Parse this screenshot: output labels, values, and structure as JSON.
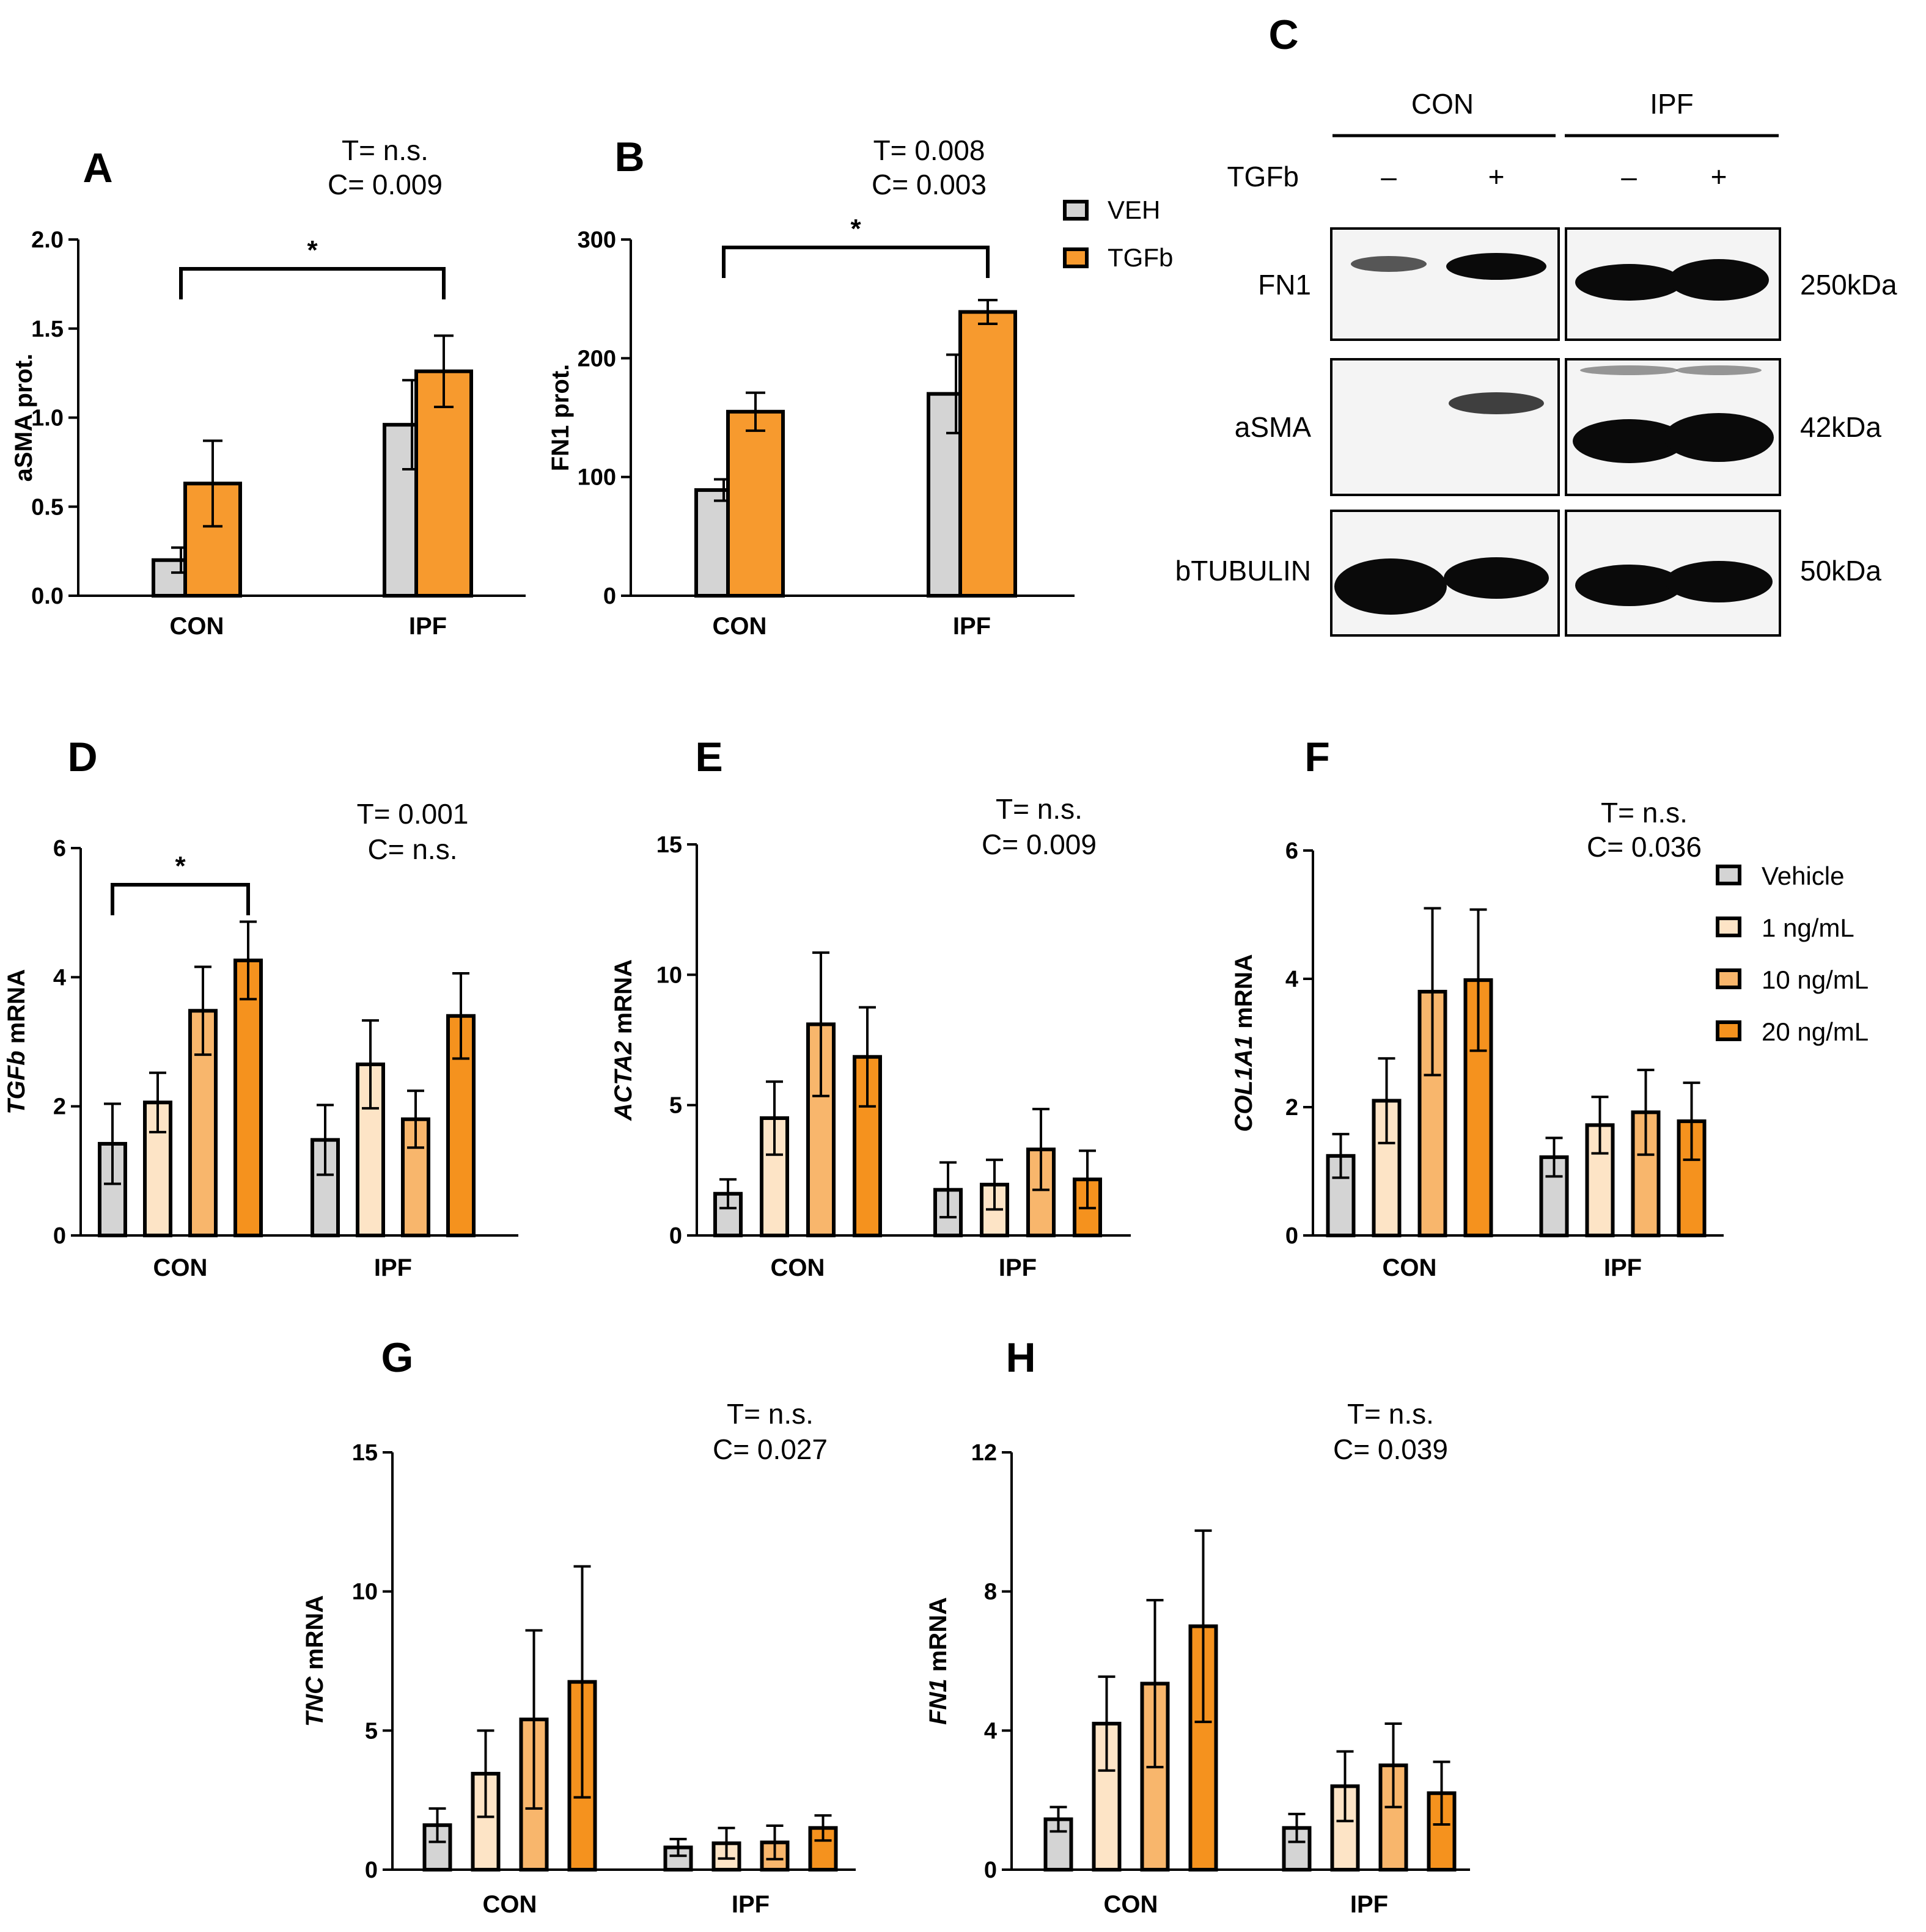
{
  "colors": {
    "VEH": "#d4d4d4",
    "TGFb": "#f79a2e",
    "Vehicle": "#d4d4d4",
    "1 ng/mL": "#fde4c6",
    "10 ng/mL": "#f8b66c",
    "20 ng/mL": "#f5921e",
    "band": "#0a0a0a"
  },
  "legend_protein": [
    "VEH",
    "TGFb"
  ],
  "legend_mrna": [
    "Vehicle",
    "1 ng/mL",
    "10 ng/mL",
    "20 ng/mL"
  ],
  "chart_data": [
    {
      "id": "A",
      "panel_label": "A",
      "type": "bar",
      "ylabel": "aSMA prot.",
      "ylabel_italic": "",
      "ylabel_rest": "aSMA prot.",
      "ylim": [
        0,
        2.0
      ],
      "yticks": [
        "0.0",
        "0.5",
        "1.0",
        "1.5",
        "2.0"
      ],
      "ytick_values": [
        0,
        0.5,
        1.0,
        1.5,
        2.0
      ],
      "categories": [
        "CON",
        "IPF"
      ],
      "stat_lines": [
        "T= n.s.",
        "C= 0.009"
      ],
      "significance": {
        "label": "*",
        "from": [
          0,
          0
        ],
        "to": [
          1,
          1
        ]
      },
      "series": [
        {
          "name": "VEH",
          "values": [
            0.2,
            0.96
          ],
          "errors": [
            0.07,
            0.25
          ]
        },
        {
          "name": "TGFb",
          "values": [
            0.63,
            1.26
          ],
          "errors": [
            0.24,
            0.2
          ]
        }
      ]
    },
    {
      "id": "B",
      "panel_label": "B",
      "type": "bar",
      "ylabel": "FN1 prot.",
      "ylabel_italic": "",
      "ylabel_rest": "FN1 prot.",
      "ylim": [
        0,
        300
      ],
      "yticks": [
        "0",
        "100",
        "200",
        "300"
      ],
      "ytick_values": [
        0,
        100,
        200,
        300
      ],
      "categories": [
        "CON",
        "IPF"
      ],
      "stat_lines": [
        "T= 0.008",
        "C= 0.003"
      ],
      "significance": {
        "label": "*",
        "from": [
          0,
          0
        ],
        "to": [
          1,
          1
        ]
      },
      "series": [
        {
          "name": "VEH",
          "values": [
            89,
            170
          ],
          "errors": [
            9,
            33
          ]
        },
        {
          "name": "TGFb",
          "values": [
            155,
            239
          ],
          "errors": [
            16,
            10
          ]
        }
      ]
    },
    {
      "id": "D",
      "panel_label": "D",
      "type": "bar",
      "ylabel": "TGFb mRNA",
      "ylabel_italic": "TGFb",
      "ylabel_rest": " mRNA",
      "ylim": [
        0,
        6
      ],
      "yticks": [
        "0",
        "2",
        "4",
        "6"
      ],
      "ytick_values": [
        0,
        2,
        4,
        6
      ],
      "categories": [
        "CON",
        "IPF"
      ],
      "stat_lines": [
        "T= 0.001",
        "C= n.s."
      ],
      "significance": {
        "label": "*",
        "from": [
          0,
          0
        ],
        "to": [
          0,
          3
        ]
      },
      "series": [
        {
          "name": "Vehicle",
          "values": [
            1.42,
            1.48
          ],
          "errors": [
            0.62,
            0.54
          ]
        },
        {
          "name": "1 ng/mL",
          "values": [
            2.06,
            2.65
          ],
          "errors": [
            0.46,
            0.68
          ]
        },
        {
          "name": "10 ng/mL",
          "values": [
            3.48,
            1.8
          ],
          "errors": [
            0.68,
            0.44
          ]
        },
        {
          "name": "20 ng/mL",
          "values": [
            4.26,
            3.4
          ],
          "errors": [
            0.6,
            0.66
          ]
        }
      ]
    },
    {
      "id": "E",
      "panel_label": "E",
      "type": "bar",
      "ylabel": "ACTA2 mRNA",
      "ylabel_italic": "ACTA2",
      "ylabel_rest": " mRNA",
      "ylim": [
        0,
        15
      ],
      "yticks": [
        "0",
        "5",
        "10",
        "15"
      ],
      "ytick_values": [
        0,
        5,
        10,
        15
      ],
      "categories": [
        "CON",
        "IPF"
      ],
      "stat_lines": [
        "T= n.s.",
        "C= 0.009"
      ],
      "series": [
        {
          "name": "Vehicle",
          "values": [
            1.6,
            1.75
          ],
          "errors": [
            0.55,
            1.05
          ]
        },
        {
          "name": "1 ng/mL",
          "values": [
            4.5,
            1.95
          ],
          "errors": [
            1.4,
            0.95
          ]
        },
        {
          "name": "10 ng/mL",
          "values": [
            8.1,
            3.3
          ],
          "errors": [
            2.75,
            1.55
          ]
        },
        {
          "name": "20 ng/mL",
          "values": [
            6.85,
            2.15
          ],
          "errors": [
            1.9,
            1.1
          ]
        }
      ]
    },
    {
      "id": "F",
      "panel_label": "F",
      "type": "bar",
      "ylabel": "COL1A1 mRNA",
      "ylabel_italic": "COL1A1",
      "ylabel_rest": " mRNA",
      "ylim": [
        0,
        6
      ],
      "yticks": [
        "0",
        "2",
        "4",
        "6"
      ],
      "ytick_values": [
        0,
        2,
        4,
        6
      ],
      "categories": [
        "CON",
        "IPF"
      ],
      "stat_lines": [
        "T= n.s.",
        "C= 0.036"
      ],
      "series": [
        {
          "name": "Vehicle",
          "values": [
            1.24,
            1.22
          ],
          "errors": [
            0.34,
            0.3
          ]
        },
        {
          "name": "1 ng/mL",
          "values": [
            2.1,
            1.72
          ],
          "errors": [
            0.66,
            0.44
          ]
        },
        {
          "name": "10 ng/mL",
          "values": [
            3.8,
            1.92
          ],
          "errors": [
            1.3,
            0.66
          ]
        },
        {
          "name": "20 ng/mL",
          "values": [
            3.98,
            1.78
          ],
          "errors": [
            1.1,
            0.6
          ]
        }
      ]
    },
    {
      "id": "G",
      "panel_label": "G",
      "type": "bar",
      "ylabel": "TNC mRNA",
      "ylabel_italic": "TNC",
      "ylabel_rest": " mRNA",
      "ylim": [
        0,
        15
      ],
      "yticks": [
        "0",
        "5",
        "10",
        "15"
      ],
      "ytick_values": [
        0,
        5,
        10,
        15
      ],
      "categories": [
        "CON",
        "IPF"
      ],
      "stat_lines": [
        "T= n.s.",
        "C= 0.027"
      ],
      "series": [
        {
          "name": "Vehicle",
          "values": [
            1.6,
            0.8
          ],
          "errors": [
            0.6,
            0.3
          ]
        },
        {
          "name": "1 ng/mL",
          "values": [
            3.45,
            0.95
          ],
          "errors": [
            1.55,
            0.55
          ]
        },
        {
          "name": "10 ng/mL",
          "values": [
            5.4,
            0.98
          ],
          "errors": [
            3.2,
            0.6
          ]
        },
        {
          "name": "20 ng/mL",
          "values": [
            6.75,
            1.5
          ],
          "errors": [
            4.15,
            0.45
          ]
        }
      ]
    },
    {
      "id": "H",
      "panel_label": "H",
      "type": "bar",
      "ylabel": "FN1 mRNA",
      "ylabel_italic": "FN1",
      "ylabel_rest": " mRNA",
      "ylim": [
        0,
        12
      ],
      "yticks": [
        "0",
        "4",
        "8",
        "12"
      ],
      "ytick_values": [
        0,
        4,
        8,
        12
      ],
      "categories": [
        "CON",
        "IPF"
      ],
      "stat_lines": [
        "T= n.s.",
        "C= 0.039"
      ],
      "series": [
        {
          "name": "Vehicle",
          "values": [
            1.45,
            1.2
          ],
          "errors": [
            0.35,
            0.4
          ]
        },
        {
          "name": "1 ng/mL",
          "values": [
            4.2,
            2.4
          ],
          "errors": [
            1.35,
            1.0
          ]
        },
        {
          "name": "10 ng/mL",
          "values": [
            5.35,
            3.0
          ],
          "errors": [
            2.4,
            1.2
          ]
        },
        {
          "name": "20 ng/mL",
          "values": [
            7.0,
            2.2
          ],
          "errors": [
            2.75,
            0.9
          ]
        }
      ]
    }
  ],
  "blot": {
    "panel_label": "C",
    "groups": [
      "CON",
      "IPF"
    ],
    "treatment_label": "TGFb",
    "lanes": [
      "–",
      "+",
      "–",
      "+"
    ],
    "rows": [
      {
        "name": "FN1",
        "kda": "250kDa"
      },
      {
        "name": "aSMA",
        "kda": "42kDa"
      },
      {
        "name": "bTUBULIN",
        "kda": "50kDa"
      }
    ]
  }
}
